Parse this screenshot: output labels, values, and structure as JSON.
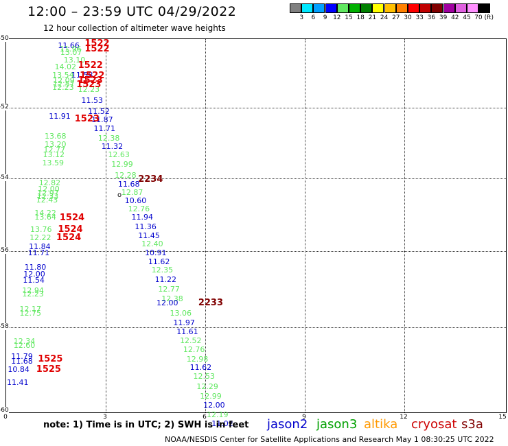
{
  "header": {
    "title": "12:00 – 23:59 UTC 04/29/2022",
    "subtitle": "12 hour collection of altimeter wave heights"
  },
  "legend": {
    "labels": [
      "3",
      "6",
      "9",
      "12",
      "15",
      "18",
      "21",
      "24",
      "27",
      "30",
      "33",
      "36",
      "39",
      "42",
      "45",
      "70 (ft)"
    ],
    "colors": [
      "#808080",
      "#00e8ff",
      "#00a0ff",
      "#0000ff",
      "#60e860",
      "#00b000",
      "#008000",
      "#ffff00",
      "#ffc000",
      "#ff8000",
      "#ff0000",
      "#c00000",
      "#800000",
      "#a000a0",
      "#e060e0",
      "#ff90ff",
      "#000000"
    ]
  },
  "map": {
    "y_ticks": [
      "-50",
      "-52",
      "-54",
      "-56",
      "-58",
      "-60"
    ],
    "x_ticks": [
      "0",
      "3",
      "6",
      "9",
      "12",
      "15"
    ],
    "marker_label": "o",
    "observations": [
      {
        "v": "11.66",
        "c": "#0000cc",
        "lon": 1.55,
        "lat": -50.18
      },
      {
        "v": "11.96",
        "c": "#60e860",
        "lon": 1.6,
        "lat": -50.28
      },
      {
        "v": "13.07",
        "c": "#60e860",
        "lon": 1.62,
        "lat": -50.36
      },
      {
        "v": "13.10",
        "c": "#60e860",
        "lon": 1.72,
        "lat": -50.56
      },
      {
        "v": "14.02",
        "c": "#60e860",
        "lon": 1.45,
        "lat": -50.75
      },
      {
        "v": "13.54",
        "c": "#60e860",
        "lon": 1.38,
        "lat": -50.97
      },
      {
        "v": "11.58",
        "c": "#0000cc",
        "lon": 1.95,
        "lat": -50.97
      },
      {
        "v": "12.09",
        "c": "#60e860",
        "lon": 1.4,
        "lat": -51.12
      },
      {
        "v": "12.57",
        "c": "#60e860",
        "lon": 1.4,
        "lat": -51.2
      },
      {
        "v": "12.23",
        "c": "#60e860",
        "lon": 1.38,
        "lat": -51.3
      },
      {
        "v": "12.23",
        "c": "#60e860",
        "lon": 2.15,
        "lat": -51.35
      },
      {
        "v": "11.53",
        "c": "#0000cc",
        "lon": 2.25,
        "lat": -51.65
      },
      {
        "v": "11.52",
        "c": "#0000cc",
        "lon": 2.45,
        "lat": -51.95
      },
      {
        "v": "11.91",
        "c": "#0000cc",
        "lon": 1.28,
        "lat": -52.07
      },
      {
        "v": "11.87",
        "c": "#0000cc",
        "lon": 2.55,
        "lat": -52.17
      },
      {
        "v": "11.71",
        "c": "#0000cc",
        "lon": 2.62,
        "lat": -52.4
      },
      {
        "v": "13.68",
        "c": "#60e860",
        "lon": 1.15,
        "lat": -52.6
      },
      {
        "v": "12.38",
        "c": "#60e860",
        "lon": 2.75,
        "lat": -52.65
      },
      {
        "v": "13.20",
        "c": "#60e860",
        "lon": 1.15,
        "lat": -52.82
      },
      {
        "v": "11.32",
        "c": "#0000cc",
        "lon": 2.85,
        "lat": -52.88
      },
      {
        "v": "12.77",
        "c": "#60e860",
        "lon": 1.12,
        "lat": -52.97
      },
      {
        "v": "13.12",
        "c": "#60e860",
        "lon": 1.1,
        "lat": -53.1
      },
      {
        "v": "12.63",
        "c": "#60e860",
        "lon": 3.05,
        "lat": -53.1
      },
      {
        "v": "13.59",
        "c": "#60e860",
        "lon": 1.08,
        "lat": -53.32
      },
      {
        "v": "12.99",
        "c": "#60e860",
        "lon": 3.15,
        "lat": -53.35
      },
      {
        "v": "12.28",
        "c": "#60e860",
        "lon": 3.25,
        "lat": -53.65
      },
      {
        "v": "11.68",
        "c": "#0000cc",
        "lon": 3.35,
        "lat": -53.88
      },
      {
        "v": "12.82",
        "c": "#60e860",
        "lon": 0.98,
        "lat": -53.85
      },
      {
        "v": "12.00",
        "c": "#60e860",
        "lon": 0.95,
        "lat": -54.02
      },
      {
        "v": "12.97",
        "c": "#60e860",
        "lon": 0.93,
        "lat": -54.12
      },
      {
        "v": "12.87",
        "c": "#60e860",
        "lon": 3.45,
        "lat": -54.1
      },
      {
        "v": "12.33",
        "c": "#60e860",
        "lon": 0.92,
        "lat": -54.22
      },
      {
        "v": "12.43",
        "c": "#60e860",
        "lon": 0.9,
        "lat": -54.3
      },
      {
        "v": "10.60",
        "c": "#0000cc",
        "lon": 3.55,
        "lat": -54.32
      },
      {
        "v": "12.76",
        "c": "#60e860",
        "lon": 3.65,
        "lat": -54.55
      },
      {
        "v": "14.22",
        "c": "#60e860",
        "lon": 0.85,
        "lat": -54.65
      },
      {
        "v": "13.64",
        "c": "#60e860",
        "lon": 0.85,
        "lat": -54.77
      },
      {
        "v": "11.94",
        "c": "#0000cc",
        "lon": 3.75,
        "lat": -54.77
      },
      {
        "v": "11.36",
        "c": "#0000cc",
        "lon": 3.85,
        "lat": -55.02
      },
      {
        "v": "13.76",
        "c": "#60e860",
        "lon": 0.72,
        "lat": -55.1
      },
      {
        "v": "11.45",
        "c": "#0000cc",
        "lon": 3.95,
        "lat": -55.25
      },
      {
        "v": "12.22",
        "c": "#60e860",
        "lon": 0.7,
        "lat": -55.32
      },
      {
        "v": "12.40",
        "c": "#60e860",
        "lon": 4.05,
        "lat": -55.48
      },
      {
        "v": "11.84",
        "c": "#0000cc",
        "lon": 0.68,
        "lat": -55.55
      },
      {
        "v": "11.71",
        "c": "#0000cc",
        "lon": 0.65,
        "lat": -55.72
      },
      {
        "v": "10.91",
        "c": "#0000cc",
        "lon": 4.15,
        "lat": -55.72
      },
      {
        "v": "11.62",
        "c": "#0000cc",
        "lon": 4.25,
        "lat": -55.95
      },
      {
        "v": "11.80",
        "c": "#0000cc",
        "lon": 0.55,
        "lat": -56.1
      },
      {
        "v": "12.35",
        "c": "#60e860",
        "lon": 4.35,
        "lat": -56.18
      },
      {
        "v": "12.00",
        "c": "#0000cc",
        "lon": 0.52,
        "lat": -56.28
      },
      {
        "v": "11.22",
        "c": "#0000cc",
        "lon": 4.45,
        "lat": -56.42
      },
      {
        "v": "11.54",
        "c": "#0000cc",
        "lon": 0.5,
        "lat": -56.45
      },
      {
        "v": "12.77",
        "c": "#60e860",
        "lon": 4.55,
        "lat": -56.68
      },
      {
        "v": "12.94",
        "c": "#60e860",
        "lon": 0.48,
        "lat": -56.72
      },
      {
        "v": "12.23",
        "c": "#60e860",
        "lon": 0.48,
        "lat": -56.82
      },
      {
        "v": "12.38",
        "c": "#60e860",
        "lon": 4.65,
        "lat": -56.95
      },
      {
        "v": "12.00",
        "c": "#0000cc",
        "lon": 4.5,
        "lat": -57.05
      },
      {
        "v": "12.17",
        "c": "#60e860",
        "lon": 0.4,
        "lat": -57.22
      },
      {
        "v": "12.75",
        "c": "#60e860",
        "lon": 0.4,
        "lat": -57.32
      },
      {
        "v": "13.06",
        "c": "#60e860",
        "lon": 4.9,
        "lat": -57.32
      },
      {
        "v": "11.97",
        "c": "#0000cc",
        "lon": 5.0,
        "lat": -57.58
      },
      {
        "v": "11.61",
        "c": "#0000cc",
        "lon": 5.1,
        "lat": -57.82
      },
      {
        "v": "12.52",
        "c": "#60e860",
        "lon": 5.2,
        "lat": -58.05
      },
      {
        "v": "12.34",
        "c": "#60e860",
        "lon": 0.22,
        "lat": -58.08
      },
      {
        "v": "12.60",
        "c": "#60e860",
        "lon": 0.22,
        "lat": -58.18
      },
      {
        "v": "12.76",
        "c": "#60e860",
        "lon": 5.3,
        "lat": -58.3
      },
      {
        "v": "11.79",
        "c": "#0000cc",
        "lon": 0.15,
        "lat": -58.48
      },
      {
        "v": "12.98",
        "c": "#60e860",
        "lon": 5.4,
        "lat": -58.55
      },
      {
        "v": "11.68",
        "c": "#0000cc",
        "lon": 0.15,
        "lat": -58.6
      },
      {
        "v": "11.62",
        "c": "#0000cc",
        "lon": 5.5,
        "lat": -58.78
      },
      {
        "v": "10.84",
        "c": "#0000cc",
        "lon": 0.05,
        "lat": -58.82
      },
      {
        "v": "12.53",
        "c": "#60e860",
        "lon": 5.6,
        "lat": -59.02
      },
      {
        "v": "11.41",
        "c": "#0000cc",
        "lon": 0.02,
        "lat": -59.17
      },
      {
        "v": "12.29",
        "c": "#60e860",
        "lon": 5.7,
        "lat": -59.28
      },
      {
        "v": "12.99",
        "c": "#60e860",
        "lon": 5.8,
        "lat": -59.55
      },
      {
        "v": "12.00",
        "c": "#0000cc",
        "lon": 5.9,
        "lat": -59.78
      },
      {
        "v": "12.19",
        "c": "#60e860",
        "lon": 6.0,
        "lat": -60.03
      },
      {
        "v": "11.02",
        "c": "#0000cc",
        "lon": 6.15,
        "lat": -60.28
      }
    ],
    "passes": [
      {
        "t": "1522",
        "c": "#e00000",
        "lon": 2.35,
        "lat": -50.12
      },
      {
        "t": "1522",
        "c": "#e00000",
        "lon": 2.35,
        "lat": -50.28
      },
      {
        "t": "1522",
        "c": "#e00000",
        "lon": 2.15,
        "lat": -50.72
      },
      {
        "t": "1522",
        "c": "#e00000",
        "lon": 2.2,
        "lat": -50.98
      },
      {
        "t": "1523",
        "c": "#e00000",
        "lon": 2.15,
        "lat": -51.12
      },
      {
        "t": "1523",
        "c": "#e00000",
        "lon": 2.1,
        "lat": -51.22
      },
      {
        "t": "1523",
        "c": "#e00000",
        "lon": 2.05,
        "lat": -52.15
      },
      {
        "t": "2234",
        "c": "#800000",
        "lon": 3.95,
        "lat": -53.75
      },
      {
        "t": "1524",
        "c": "#e00000",
        "lon": 1.6,
        "lat": -54.78
      },
      {
        "t": "1524",
        "c": "#e00000",
        "lon": 1.55,
        "lat": -55.1
      },
      {
        "t": "1524",
        "c": "#e00000",
        "lon": 1.5,
        "lat": -55.32
      },
      {
        "t": "2233",
        "c": "#800000",
        "lon": 5.75,
        "lat": -57.05
      },
      {
        "t": "1525",
        "c": "#e00000",
        "lon": 0.95,
        "lat": -58.55
      },
      {
        "t": "1525",
        "c": "#e00000",
        "lon": 0.9,
        "lat": -58.82
      }
    ]
  },
  "footer": {
    "note": "note:  1) Time is in UTC;  2) SWH is in feet",
    "satellites": [
      {
        "name": "jason2",
        "color": "#0000cc"
      },
      {
        "name": "jason3",
        "color": "#00a000"
      },
      {
        "name": "altika",
        "color": "#ff9900"
      },
      {
        "name": "cryosat",
        "color": "#cc0000"
      },
      {
        "name": "s3a",
        "color": "#800000"
      }
    ],
    "credit": "NOAA/NESDIS Center for Satellite Applications and Research     May  1 08:30:25 UTC 2022"
  }
}
